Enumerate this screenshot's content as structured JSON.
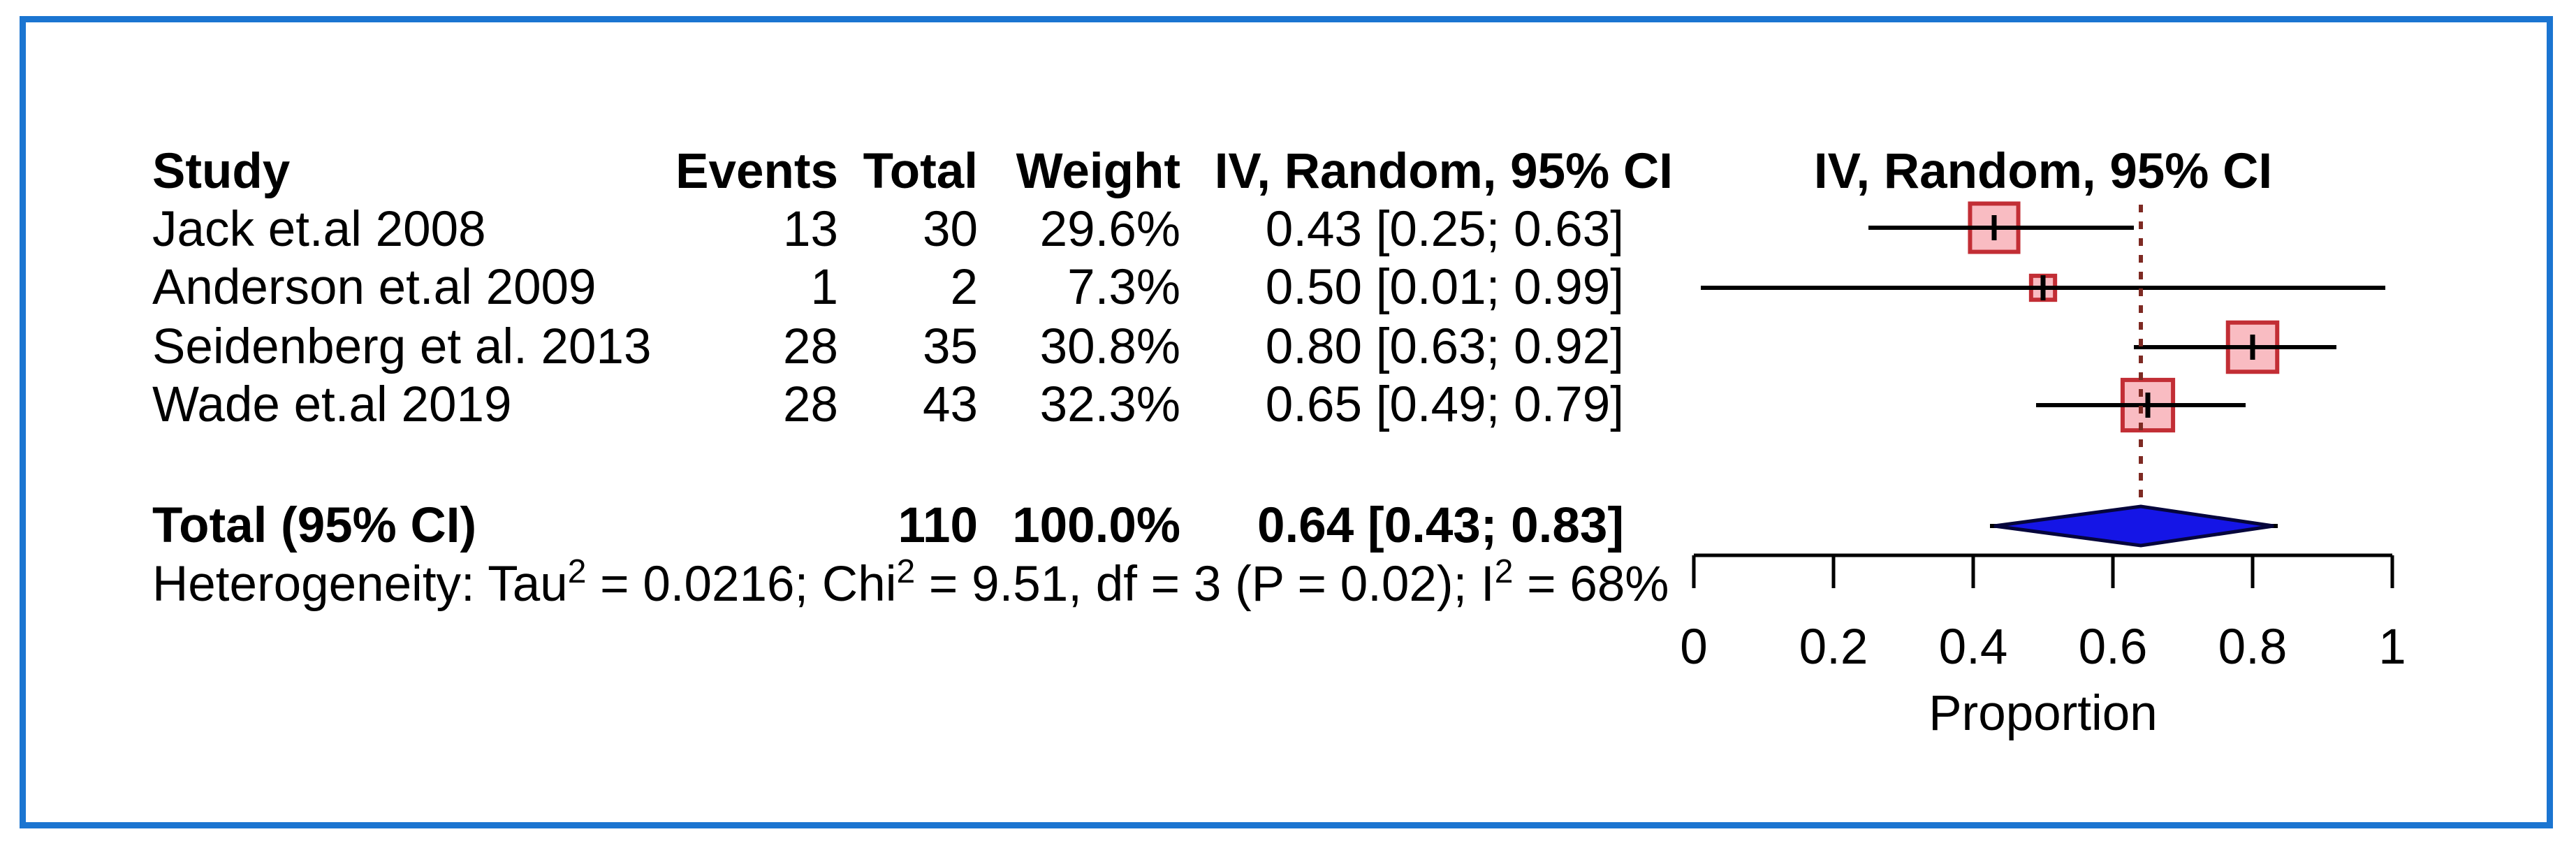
{
  "frame": {
    "border_color": "#1B75D1"
  },
  "table": {
    "headers": {
      "study": "Study",
      "events": "Events",
      "total": "Total",
      "weight": "Weight",
      "ci": "IV, Random, 95% CI"
    },
    "rows": [
      {
        "study": "Jack et.al 2008",
        "events": "13",
        "total": "30",
        "weight": "29.6%",
        "ci": "0.43 [0.25; 0.63]"
      },
      {
        "study": "Anderson et.al 2009",
        "events": "1",
        "total": "2",
        "weight": "7.3%",
        "ci": "0.50 [0.01; 0.99]"
      },
      {
        "study": "Seidenberg et al. 2013",
        "events": "28",
        "total": "35",
        "weight": "30.8%",
        "ci": "0.80 [0.63; 0.92]"
      },
      {
        "study": "Wade et.al 2019",
        "events": "28",
        "total": "43",
        "weight": "32.3%",
        "ci": "0.65 [0.49; 0.79]"
      }
    ],
    "total_row": {
      "label": "Total (95% CI)",
      "total": "110",
      "weight": "100.0%",
      "ci": "0.64 [0.43; 0.83]"
    },
    "heterogeneity": {
      "p1": "Heterogeneity: Tau",
      "sup": "2",
      "p2": " = 0.0216; Chi",
      "p3": " = 9.51, df = 3 (P = 0.02); I",
      "p4": " = 68%"
    }
  },
  "plot": {
    "header": "IV, Random, 95% CI"
  },
  "chart_data": {
    "type": "forest",
    "title": "",
    "xlabel": "Proportion",
    "x_axis": {
      "label": "Proportion",
      "ticks": [
        0,
        0.2,
        0.4,
        0.6,
        0.8,
        1
      ],
      "range": [
        0,
        1
      ]
    },
    "model": "IV, Random, 95% CI",
    "studies": [
      {
        "name": "Jack et.al 2008",
        "events": 13,
        "total": 30,
        "proportion": 0.43,
        "ci_low": 0.25,
        "ci_high": 0.63,
        "weight_pct": 29.6
      },
      {
        "name": "Anderson et.al 2009",
        "events": 1,
        "total": 2,
        "proportion": 0.5,
        "ci_low": 0.01,
        "ci_high": 0.99,
        "weight_pct": 7.3
      },
      {
        "name": "Seidenberg et al. 2013",
        "events": 28,
        "total": 35,
        "proportion": 0.8,
        "ci_low": 0.63,
        "ci_high": 0.92,
        "weight_pct": 30.8
      },
      {
        "name": "Wade et.al 2019",
        "events": 28,
        "total": 43,
        "proportion": 0.65,
        "ci_low": 0.49,
        "ci_high": 0.79,
        "weight_pct": 32.3
      }
    ],
    "total": {
      "label": "Total (95% CI)",
      "total_n": 110,
      "weight_pct": 100.0,
      "proportion": 0.64,
      "ci_low": 0.43,
      "ci_high": 0.83
    },
    "heterogeneity": {
      "tau2": 0.0216,
      "chi2": 9.51,
      "df": 3,
      "p": 0.02,
      "i2_pct": 68
    },
    "reference_line": 0.64,
    "colors": {
      "square_fill": "#F9BCC2",
      "square_border": "#C22E35",
      "diamond_fill": "#1515E6",
      "diamond_border": "#05053C",
      "ref_line": "#7E2A23",
      "ci_line": "#000000",
      "axis": "#000000",
      "frame": "#1B75D1"
    }
  }
}
